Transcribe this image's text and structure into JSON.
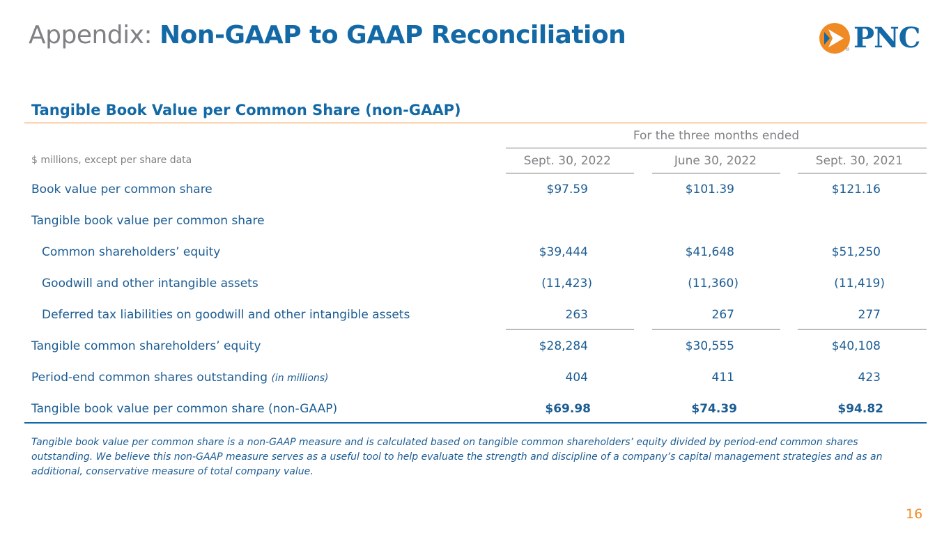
{
  "header": {
    "title_prefix": "Appendix:",
    "title_main": "Non-GAAP to GAAP Reconciliation",
    "logo_text": "PNC",
    "logo_reg": "®",
    "colors": {
      "brand_blue": "#1369a6",
      "brand_orange": "#f08a24",
      "gray": "#7f8184"
    }
  },
  "section": {
    "title": "Tangible Book Value per Common Share (non-GAAP)",
    "group_header": "For the three months ended",
    "unit_label": "$ millions, except per share data",
    "columns": [
      "Sept. 30, 2022",
      "June 30, 2022",
      "Sept. 30, 2021"
    ]
  },
  "rows": [
    {
      "label": "Book value per common share",
      "values": [
        "$97.59",
        "$101.39",
        "$121.16"
      ]
    },
    {
      "label": "Tangible book value per common share",
      "values": [
        "",
        "",
        ""
      ]
    },
    {
      "label": "Common shareholders’ equity",
      "values": [
        "$39,444",
        "$41,648",
        "$51,250"
      ]
    },
    {
      "label": "Goodwill and other intangible assets",
      "values": [
        "(11,423)",
        "(11,360)",
        "(11,419)"
      ]
    },
    {
      "label": "Deferred tax liabilities on goodwill and other intangible assets",
      "values": [
        "263",
        "267",
        "277"
      ]
    },
    {
      "label": "Tangible common shareholders’ equity",
      "values": [
        "$28,284",
        "$30,555",
        "$40,108"
      ]
    },
    {
      "label": "Period-end common shares outstanding",
      "label_note": "(in millions)",
      "values": [
        "404",
        "411",
        "423"
      ]
    },
    {
      "label": "Tangible book value per common share (non-GAAP)",
      "values": [
        "$69.98",
        "$74.39",
        "$94.82"
      ]
    }
  ],
  "footnote": "Tangible book value per common share is a non-GAAP measure and is calculated based on tangible common shareholders’ equity divided by period-end common shares outstanding. We believe this non-GAAP measure serves as a useful tool to help evaluate the strength and discipline of a company’s capital management strategies and as an additional, conservative measure of total company value.",
  "page_number": "16"
}
